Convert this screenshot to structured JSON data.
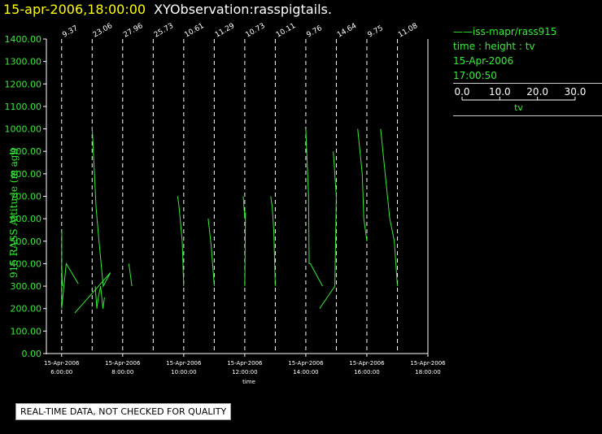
{
  "header": {
    "timestamp": "15-apr-2006,18:00:00",
    "title": "XYObservation:rasspigtails."
  },
  "legend": {
    "series": "iss-mapr/rass915",
    "desc": "time : height : tv",
    "date": "15-Apr-2006",
    "time": "17:00:50",
    "scale_ticks": [
      "0.0",
      "10.0",
      "20.0",
      "30.0"
    ],
    "scale_values": [
      0,
      10,
      20,
      30
    ],
    "scale_label": "tv"
  },
  "footer": {
    "note": "REAL-TIME DATA, NOT CHECKED FOR QUALITY"
  },
  "colors": {
    "background": "#000000",
    "data": "#33ee33",
    "axes": "#ffffff",
    "title_timestamp": "#ffff00"
  },
  "chart_data": {
    "type": "line",
    "title": "XYObservation:rasspigtails.",
    "ylabel": "915 RASS Altitude (m agl)",
    "xlabel": "time",
    "ylim": [
      0,
      1400
    ],
    "xlim_hours": [
      5.5,
      18.0
    ],
    "y_ticks": [
      "0.00",
      "100.00",
      "200.00",
      "300.00",
      "400.00",
      "500.00",
      "600.00",
      "700.00",
      "800.00",
      "900.00",
      "1000.00",
      "1100.00",
      "1200.00",
      "1300.00",
      "1400.00"
    ],
    "x_ticks": [
      {
        "hour": 6,
        "date": "15-Apr-2006",
        "time": "6:00:00"
      },
      {
        "hour": 8,
        "date": "15-Apr-2006",
        "time": "8:00:00"
      },
      {
        "hour": 10,
        "date": "15-Apr-2006",
        "time": "10:00:00"
      },
      {
        "hour": 12,
        "date": "15-Apr-2006",
        "time": "12:00:00"
      },
      {
        "hour": 14,
        "date": "15-Apr-2006",
        "time": "14:00:00"
      },
      {
        "hour": 16,
        "date": "15-Apr-2006",
        "time": "16:00:00"
      },
      {
        "hour": 18,
        "date": "15-Apr-2006",
        "time": "18:00:00"
      }
    ],
    "observations": [
      {
        "hour": 6.0,
        "label": "9.37"
      },
      {
        "hour": 7.0,
        "label": "23.06"
      },
      {
        "hour": 8.0,
        "label": "27.96"
      },
      {
        "hour": 9.0,
        "label": "25.73"
      },
      {
        "hour": 10.0,
        "label": "10.61"
      },
      {
        "hour": 11.0,
        "label": "11.29"
      },
      {
        "hour": 12.0,
        "label": "10.73"
      },
      {
        "hour": 13.0,
        "label": "10.11"
      },
      {
        "hour": 14.0,
        "label": "9.76"
      },
      {
        "hour": 15.0,
        "label": "14.64"
      },
      {
        "hour": 16.0,
        "label": "9.75"
      },
      {
        "hour": 17.0,
        "label": "11.08"
      }
    ],
    "series": [
      {
        "hour": 6.0,
        "points": [
          [
            0.5,
            300
          ],
          [
            0,
            400
          ],
          [
            0.1,
            550
          ],
          [
            0,
            200
          ],
          [
            3.0,
            400
          ],
          [
            11,
            310
          ]
        ]
      },
      {
        "hour": 7.0,
        "points": [
          [
            0,
            1010
          ],
          [
            2.6,
            650
          ],
          [
            4.5,
            500
          ],
          [
            7.3,
            300
          ],
          [
            12,
            360
          ],
          [
            -11.5,
            180
          ]
        ]
      },
      {
        "hour": 8.0,
        "points": [
          [
            -12,
            250
          ],
          [
            -13,
            200
          ],
          [
            -14.5,
            300
          ],
          [
            -16,
            250
          ],
          [
            -17,
            200
          ],
          [
            -18,
            300
          ]
        ]
      },
      {
        "hour": 9.0,
        "points": [
          [
            -14,
            300
          ],
          [
            -15,
            350
          ],
          [
            -16,
            400
          ]
        ]
      },
      {
        "hour": 10.0,
        "points": [
          [
            -4,
            700
          ],
          [
            -3,
            650
          ],
          [
            -1,
            500
          ],
          [
            0,
            300
          ]
        ]
      },
      {
        "hour": 11.0,
        "points": [
          [
            -4,
            600
          ],
          [
            -2,
            480
          ],
          [
            0,
            300
          ]
        ]
      },
      {
        "hour": 12.0,
        "points": [
          [
            -1,
            700
          ],
          [
            0,
            600
          ],
          [
            0.5,
            630
          ],
          [
            0,
            300
          ]
        ]
      },
      {
        "hour": 13.0,
        "points": [
          [
            -3,
            700
          ],
          [
            -2,
            650
          ],
          [
            -1,
            550
          ],
          [
            0,
            300
          ]
        ]
      },
      {
        "hour": 14.0,
        "points": [
          [
            0,
            1000
          ],
          [
            1.8,
            700
          ],
          [
            2.2,
            400
          ],
          [
            3,
            400
          ],
          [
            11,
            300
          ]
        ]
      },
      {
        "hour": 15.0,
        "points": [
          [
            -2,
            900
          ],
          [
            0,
            700
          ],
          [
            -1,
            300
          ],
          [
            -11,
            200
          ]
        ]
      },
      {
        "hour": 16.0,
        "points": [
          [
            -6,
            1000
          ],
          [
            -3,
            800
          ],
          [
            -2,
            600
          ],
          [
            0,
            500
          ]
        ]
      },
      {
        "hour": 17.0,
        "points": [
          [
            -11,
            1000
          ],
          [
            -8,
            800
          ],
          [
            -5,
            600
          ],
          [
            -2,
            500
          ],
          [
            0,
            300
          ]
        ]
      }
    ]
  }
}
